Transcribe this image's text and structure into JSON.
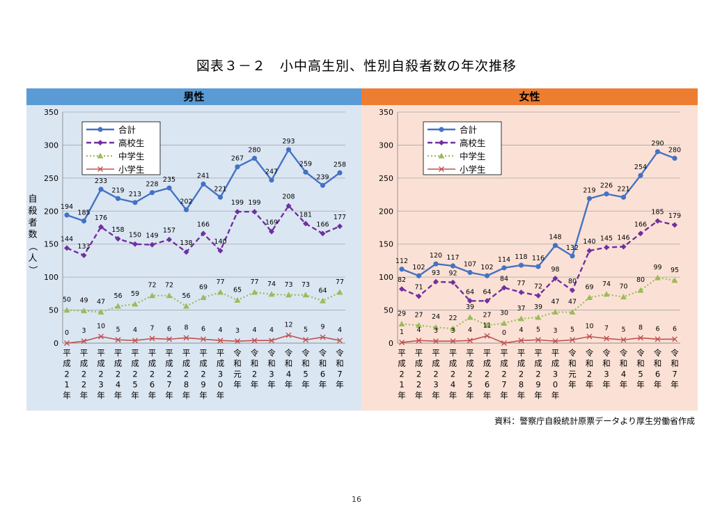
{
  "title": "図表３－２　小中高生別、性別自殺者数の年次推移",
  "source": "資料：警察庁自殺統計原票データより厚生労働省作成",
  "page_number": "16",
  "colors": {
    "male_header": "#5b9bd5",
    "female_header": "#ed7d31",
    "male_background": "#dbe6f3",
    "female_background": "#fbe1d5",
    "total": "#4472c4",
    "high_school": "#7030a0",
    "junior_high": "#9bbb59",
    "elementary": "#c0504d"
  },
  "chart_data": [
    {
      "type": "line",
      "title": "男性",
      "ylabel": "自殺者数（人）",
      "ylim": [
        0,
        350
      ],
      "yticks": [
        0,
        50,
        100,
        150,
        200,
        250,
        300,
        350
      ],
      "legend_position": "top-left",
      "grid": "horizontal",
      "categories": [
        "平成21年",
        "平成22年",
        "平成23年",
        "平成24年",
        "平成25年",
        "平成26年",
        "平成27年",
        "平成28年",
        "平成29年",
        "平成30年",
        "令和元年",
        "令和2年",
        "令和3年",
        "令和4年",
        "令和5年",
        "令和6年",
        "令和7年"
      ],
      "series": [
        {
          "name": "合計",
          "style": "solid-circle",
          "color": "#4472c4",
          "values": [
            194,
            185,
            233,
            219,
            213,
            228,
            235,
            202,
            241,
            221,
            267,
            280,
            247,
            293,
            259,
            239,
            258
          ]
        },
        {
          "name": "高校生",
          "style": "dashed-diamond",
          "color": "#7030a0",
          "values": [
            144,
            133,
            176,
            158,
            150,
            149,
            157,
            138,
            166,
            140,
            199,
            199,
            169,
            208,
            181,
            166,
            177
          ]
        },
        {
          "name": "中学生",
          "style": "dotted-triangle",
          "color": "#9bbb59",
          "values": [
            50,
            49,
            47,
            56,
            59,
            72,
            72,
            56,
            69,
            77,
            65,
            77,
            74,
            73,
            73,
            64,
            77
          ]
        },
        {
          "name": "小学生",
          "style": "solid-x",
          "color": "#c0504d",
          "values": [
            0,
            3,
            10,
            5,
            4,
            7,
            6,
            8,
            6,
            4,
            3,
            4,
            4,
            12,
            5,
            9,
            4
          ]
        }
      ]
    },
    {
      "type": "line",
      "title": "女性",
      "ylim": [
        0,
        350
      ],
      "yticks": [
        0,
        50,
        100,
        150,
        200,
        250,
        300,
        350
      ],
      "legend_position": "top-left",
      "grid": "horizontal",
      "categories": [
        "平成21年",
        "平成22年",
        "平成23年",
        "平成24年",
        "平成25年",
        "平成26年",
        "平成27年",
        "平成28年",
        "平成29年",
        "平成30年",
        "令和元年",
        "令和2年",
        "令和3年",
        "令和4年",
        "令和5年",
        "令和6年",
        "令和7年"
      ],
      "series": [
        {
          "name": "合計",
          "style": "solid-circle",
          "color": "#4472c4",
          "values": [
            112,
            102,
            120,
            117,
            107,
            102,
            114,
            118,
            116,
            148,
            132,
            219,
            226,
            221,
            254,
            290,
            280
          ]
        },
        {
          "name": "高校生",
          "style": "dashed-diamond",
          "color": "#7030a0",
          "values": [
            82,
            71,
            93,
            92,
            64,
            64,
            84,
            77,
            72,
            98,
            80,
            140,
            145,
            146,
            166,
            185,
            179
          ]
        },
        {
          "name": "中学生",
          "style": "dotted-triangle",
          "color": "#9bbb59",
          "values": [
            29,
            27,
            24,
            22,
            39,
            27,
            30,
            37,
            39,
            47,
            47,
            69,
            74,
            70,
            80,
            99,
            95
          ]
        },
        {
          "name": "小学生",
          "style": "solid-x",
          "color": "#c0504d",
          "values": [
            1,
            4,
            3,
            3,
            4,
            11,
            0,
            4,
            5,
            3,
            5,
            10,
            7,
            5,
            8,
            6,
            6
          ]
        }
      ]
    }
  ]
}
